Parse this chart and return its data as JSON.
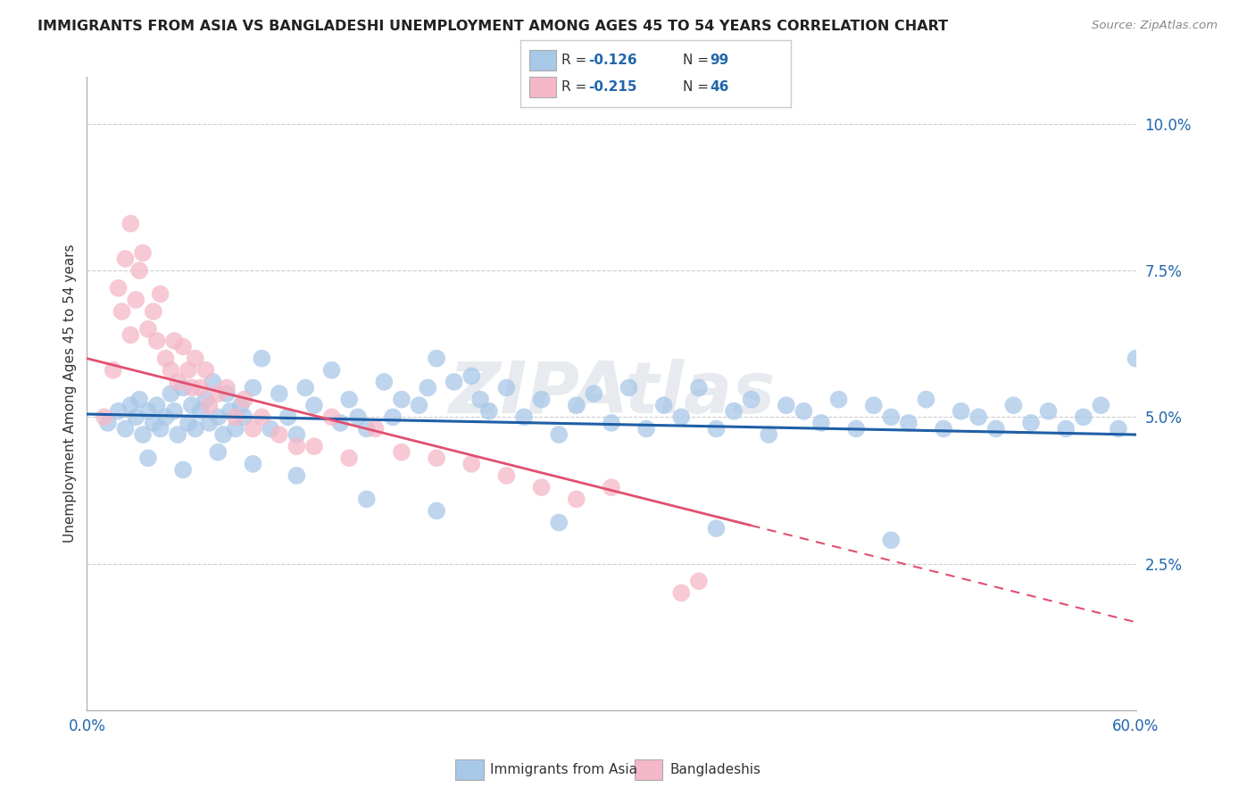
{
  "title": "IMMIGRANTS FROM ASIA VS BANGLADESHI UNEMPLOYMENT AMONG AGES 45 TO 54 YEARS CORRELATION CHART",
  "source": "Source: ZipAtlas.com",
  "ylabel": "Unemployment Among Ages 45 to 54 years",
  "x_min": 0.0,
  "x_max": 0.6,
  "y_min": 0.0,
  "y_max": 0.108,
  "y_ticks_right": [
    0.025,
    0.05,
    0.075,
    0.1
  ],
  "y_tick_labels_right": [
    "2.5%",
    "5.0%",
    "7.5%",
    "10.0%"
  ],
  "blue_color": "#a8c8e8",
  "pink_color": "#f4b8c8",
  "trend_blue_color": "#1f5fa6",
  "trend_pink_color": "#e05070",
  "label_color": "#2166ac",
  "watermark": "ZIPAtlas",
  "asia_x": [
    0.012,
    0.018,
    0.022,
    0.025,
    0.028,
    0.03,
    0.032,
    0.035,
    0.038,
    0.04,
    0.042,
    0.045,
    0.048,
    0.05,
    0.052,
    0.055,
    0.058,
    0.06,
    0.062,
    0.065,
    0.068,
    0.07,
    0.072,
    0.075,
    0.078,
    0.08,
    0.082,
    0.085,
    0.088,
    0.09,
    0.095,
    0.1,
    0.105,
    0.11,
    0.115,
    0.12,
    0.125,
    0.13,
    0.14,
    0.145,
    0.15,
    0.155,
    0.16,
    0.17,
    0.175,
    0.18,
    0.19,
    0.195,
    0.2,
    0.21,
    0.22,
    0.225,
    0.23,
    0.24,
    0.25,
    0.26,
    0.27,
    0.28,
    0.29,
    0.3,
    0.31,
    0.32,
    0.33,
    0.34,
    0.35,
    0.36,
    0.37,
    0.38,
    0.39,
    0.4,
    0.41,
    0.42,
    0.43,
    0.44,
    0.45,
    0.46,
    0.47,
    0.48,
    0.49,
    0.5,
    0.51,
    0.52,
    0.53,
    0.54,
    0.55,
    0.56,
    0.57,
    0.58,
    0.59,
    0.6,
    0.035,
    0.055,
    0.075,
    0.095,
    0.12,
    0.16,
    0.2,
    0.27,
    0.36,
    0.46
  ],
  "asia_y": [
    0.049,
    0.051,
    0.048,
    0.052,
    0.05,
    0.053,
    0.047,
    0.051,
    0.049,
    0.052,
    0.048,
    0.05,
    0.054,
    0.051,
    0.047,
    0.055,
    0.049,
    0.052,
    0.048,
    0.051,
    0.053,
    0.049,
    0.056,
    0.05,
    0.047,
    0.054,
    0.051,
    0.048,
    0.052,
    0.05,
    0.055,
    0.06,
    0.048,
    0.054,
    0.05,
    0.047,
    0.055,
    0.052,
    0.058,
    0.049,
    0.053,
    0.05,
    0.048,
    0.056,
    0.05,
    0.053,
    0.052,
    0.055,
    0.06,
    0.056,
    0.057,
    0.053,
    0.051,
    0.055,
    0.05,
    0.053,
    0.047,
    0.052,
    0.054,
    0.049,
    0.055,
    0.048,
    0.052,
    0.05,
    0.055,
    0.048,
    0.051,
    0.053,
    0.047,
    0.052,
    0.051,
    0.049,
    0.053,
    0.048,
    0.052,
    0.05,
    0.049,
    0.053,
    0.048,
    0.051,
    0.05,
    0.048,
    0.052,
    0.049,
    0.051,
    0.048,
    0.05,
    0.052,
    0.048,
    0.06,
    0.043,
    0.041,
    0.044,
    0.042,
    0.04,
    0.036,
    0.034,
    0.032,
    0.031,
    0.029
  ],
  "bang_x": [
    0.01,
    0.015,
    0.018,
    0.02,
    0.022,
    0.025,
    0.025,
    0.028,
    0.03,
    0.032,
    0.035,
    0.038,
    0.04,
    0.042,
    0.045,
    0.048,
    0.05,
    0.052,
    0.055,
    0.058,
    0.06,
    0.062,
    0.065,
    0.068,
    0.07,
    0.075,
    0.08,
    0.085,
    0.09,
    0.095,
    0.1,
    0.11,
    0.12,
    0.13,
    0.14,
    0.15,
    0.165,
    0.18,
    0.2,
    0.22,
    0.24,
    0.26,
    0.28,
    0.3,
    0.34,
    0.35
  ],
  "bang_y": [
    0.05,
    0.058,
    0.072,
    0.068,
    0.077,
    0.064,
    0.083,
    0.07,
    0.075,
    0.078,
    0.065,
    0.068,
    0.063,
    0.071,
    0.06,
    0.058,
    0.063,
    0.056,
    0.062,
    0.058,
    0.055,
    0.06,
    0.055,
    0.058,
    0.052,
    0.054,
    0.055,
    0.05,
    0.053,
    0.048,
    0.05,
    0.047,
    0.045,
    0.045,
    0.05,
    0.043,
    0.048,
    0.044,
    0.043,
    0.042,
    0.04,
    0.038,
    0.036,
    0.038,
    0.02,
    0.022
  ],
  "blue_trend_x0": 0.0,
  "blue_trend_y0": 0.0505,
  "blue_trend_x1": 0.6,
  "blue_trend_y1": 0.047,
  "pink_trend_x0": 0.0,
  "pink_trend_y0": 0.06,
  "pink_trend_x1": 0.6,
  "pink_trend_y1": 0.015
}
